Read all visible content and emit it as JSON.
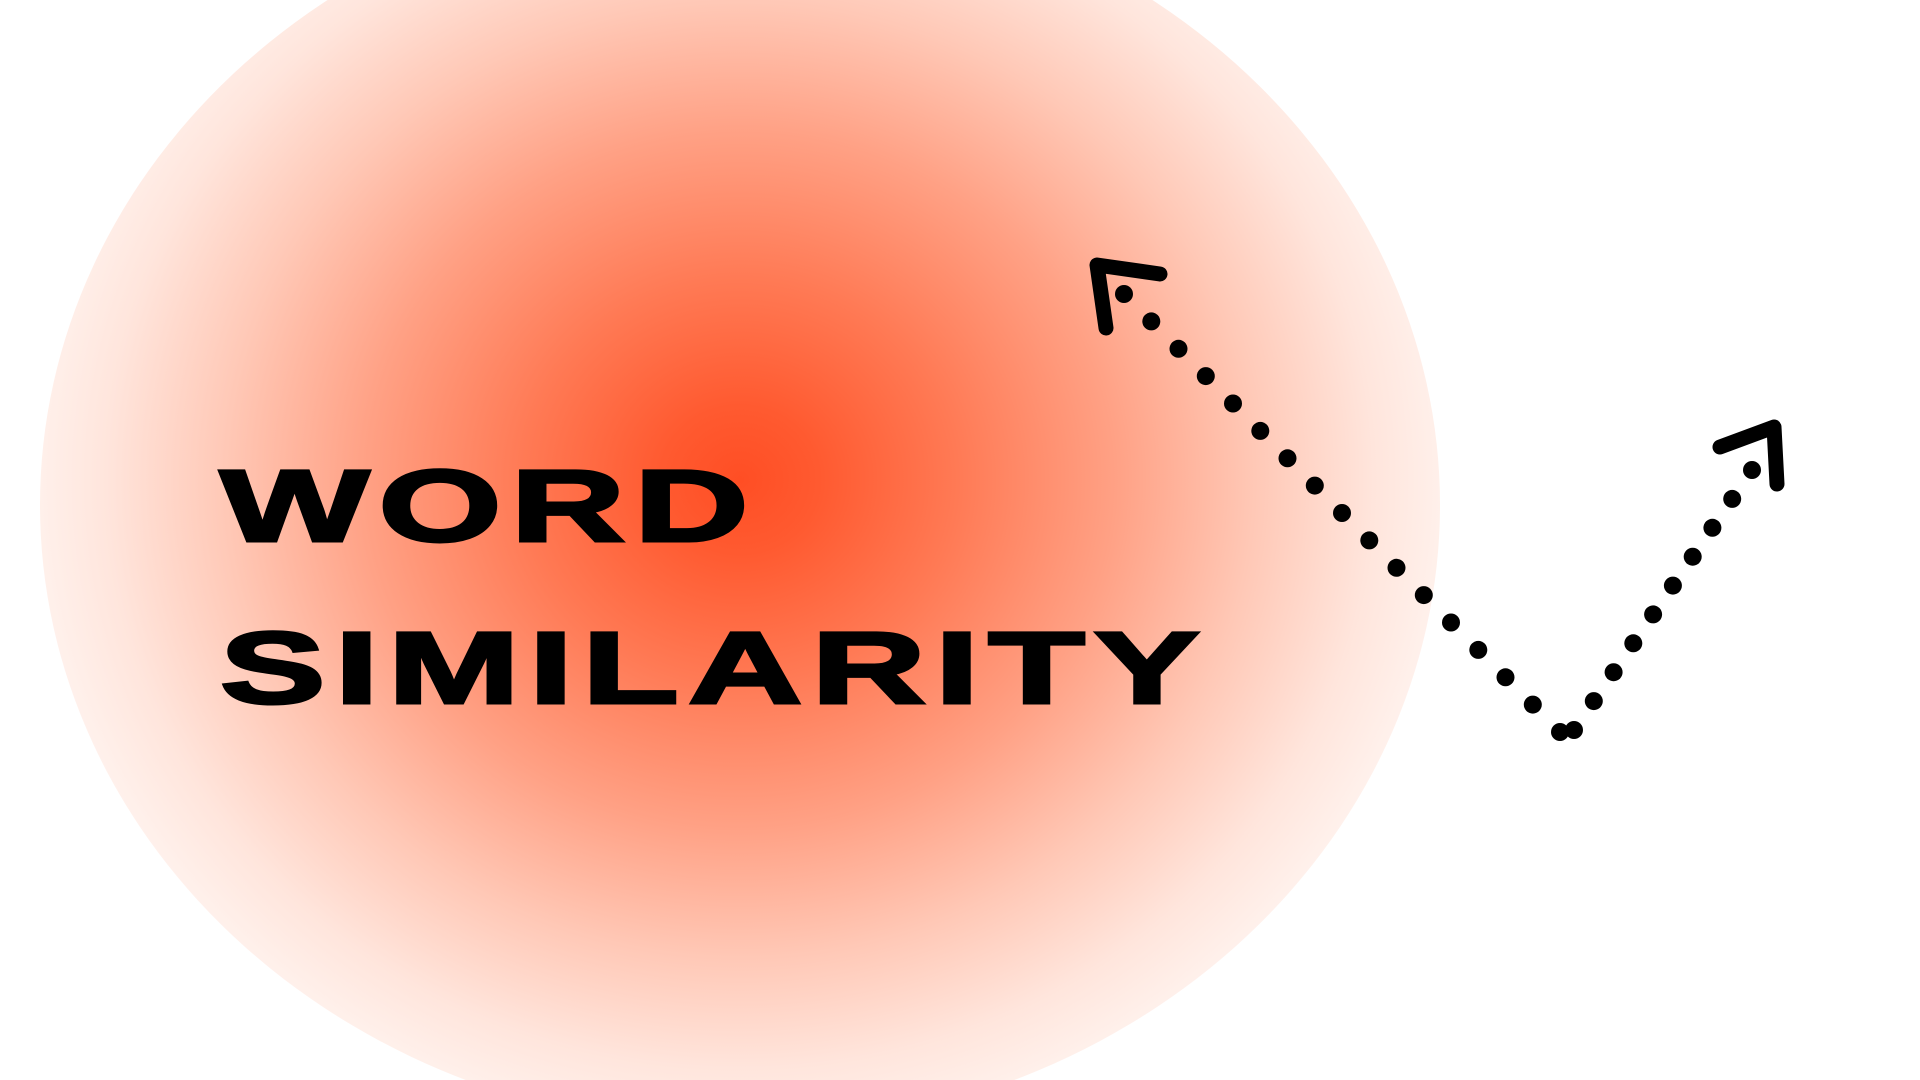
{
  "title": {
    "line1": "WORD",
    "line2": "SIMILARITY"
  },
  "graphic": {
    "icon": "dotted-v-arrows-icon",
    "dot_color": "#000000",
    "glow_color": "#ff4e24",
    "background_color": "#ffffff"
  }
}
